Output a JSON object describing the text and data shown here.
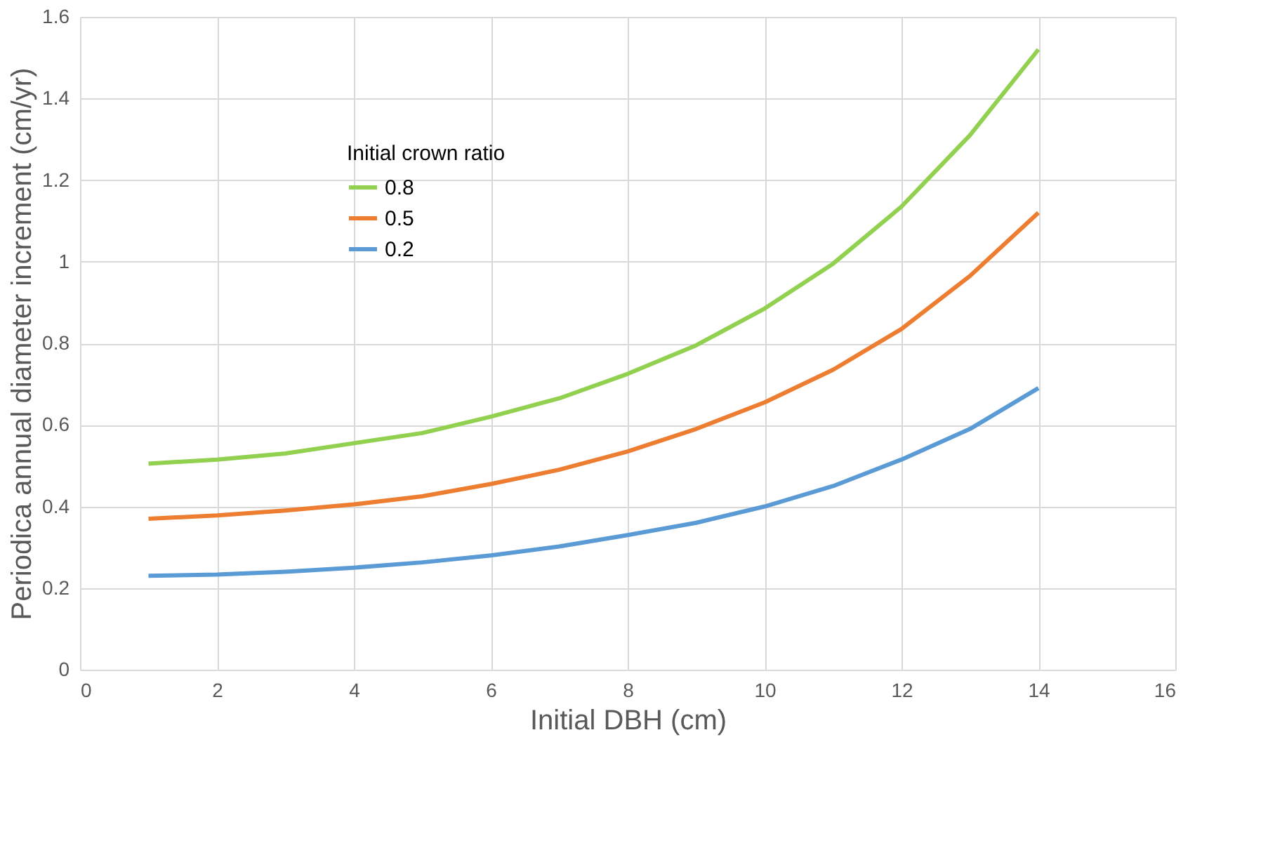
{
  "chart_data": {
    "type": "line",
    "xlabel": "Initial DBH (cm)",
    "ylabel": "Periodica annual diameter increment (cm/yr)",
    "legend_title": "Initial crown ratio",
    "x": [
      1,
      2,
      3,
      4,
      5,
      6,
      7,
      8,
      9,
      10,
      11,
      12,
      13,
      14
    ],
    "series": [
      {
        "name": "0.8",
        "color": "#92d050",
        "values": [
          0.505,
          0.515,
          0.53,
          0.555,
          0.58,
          0.62,
          0.665,
          0.725,
          0.795,
          0.885,
          0.995,
          1.135,
          1.31,
          1.52
        ]
      },
      {
        "name": "0.5",
        "color": "#ed7d31",
        "values": [
          0.37,
          0.378,
          0.39,
          0.405,
          0.425,
          0.455,
          0.49,
          0.535,
          0.59,
          0.655,
          0.735,
          0.835,
          0.965,
          1.12
        ]
      },
      {
        "name": "0.2",
        "color": "#5b9bd5",
        "values": [
          0.23,
          0.233,
          0.24,
          0.25,
          0.263,
          0.28,
          0.302,
          0.33,
          0.36,
          0.4,
          0.45,
          0.515,
          0.59,
          0.69
        ]
      }
    ],
    "xlim": [
      0,
      16
    ],
    "xticks": [
      0,
      2,
      4,
      6,
      8,
      10,
      12,
      14,
      16
    ],
    "ylim": [
      0,
      1.6
    ],
    "yticks": [
      0,
      0.2,
      0.4,
      0.6,
      0.8,
      1,
      1.2,
      1.4,
      1.6
    ],
    "grid": true,
    "legend": "top left",
    "marker": "none",
    "line_style": "solid"
  }
}
